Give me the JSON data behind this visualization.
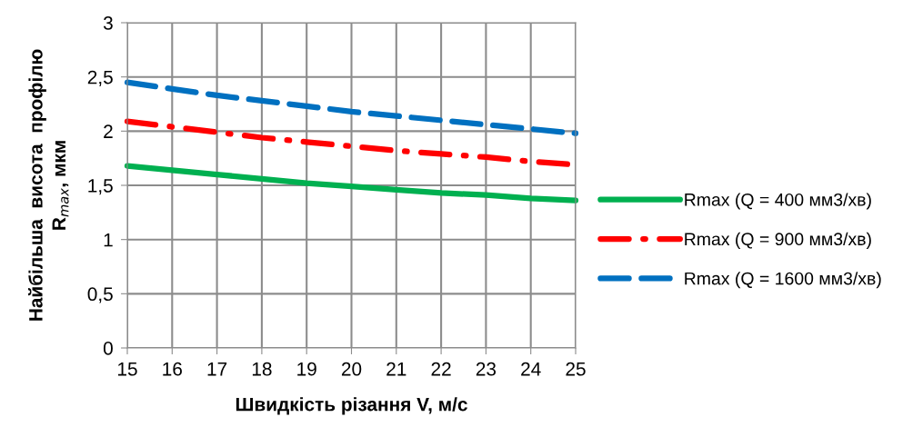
{
  "chart_data": {
    "type": "line",
    "xlabel": "Швидкість різання V, м/с",
    "ylabel": "Найбільша  висота  профілю\nR$_{max}$, мкм",
    "x": [
      15,
      16,
      17,
      18,
      19,
      20,
      21,
      22,
      23,
      24,
      25
    ],
    "series": [
      {
        "name": "Rmax (Q = 400 мм3/хв)",
        "color": "#00b050",
        "line_style": "solid",
        "values": [
          1.68,
          1.64,
          1.6,
          1.56,
          1.52,
          1.49,
          1.46,
          1.43,
          1.41,
          1.38,
          1.36
        ]
      },
      {
        "name": "Rmax (Q = 900 мм3/хв)",
        "color": "#ff0000",
        "line_style": "dashdot",
        "values": [
          2.09,
          2.04,
          1.99,
          1.94,
          1.9,
          1.86,
          1.82,
          1.79,
          1.76,
          1.72,
          1.69
        ]
      },
      {
        "name": "Rmax (Q = 1600 мм3/хв)",
        "color": "#0070c0",
        "line_style": "dashed",
        "values": [
          2.45,
          2.39,
          2.33,
          2.28,
          2.23,
          2.18,
          2.14,
          2.1,
          2.06,
          2.02,
          1.98
        ]
      }
    ],
    "xlim": [
      15,
      25
    ],
    "xticks": [
      15,
      16,
      17,
      18,
      19,
      20,
      21,
      22,
      23,
      24,
      25
    ],
    "ylim": [
      0,
      3
    ],
    "yticks": [
      0,
      {
        "value": 0.5,
        "label": "0,5"
      },
      1,
      {
        "value": 1.5,
        "label": "1,5"
      },
      2,
      {
        "value": 2.5,
        "label": "2,5"
      },
      3
    ],
    "grid": true,
    "legend": "right",
    "marker": "none"
  }
}
